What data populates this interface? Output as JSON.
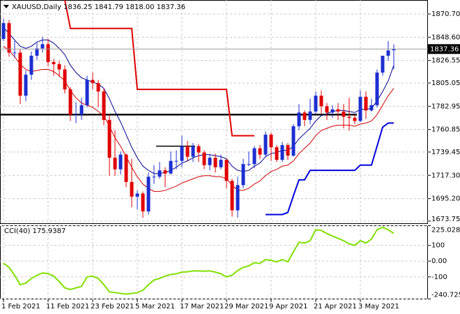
{
  "chart_data": [
    {
      "type": "candlestick",
      "title": "XAUUSD,Daily  1836.25 1841.79 1818.00 1837.36",
      "categories": [
        "1 Feb 2021",
        null,
        null,
        null,
        null,
        null,
        null,
        null,
        "11 Feb 2021",
        null,
        null,
        null,
        null,
        null,
        null,
        null,
        "23 Feb 2021",
        null,
        null,
        null,
        null,
        null,
        null,
        null,
        "5 Mar 2021",
        null,
        null,
        null,
        null,
        null,
        null,
        null,
        "17 Mar 2021",
        null,
        null,
        null,
        null,
        null,
        null,
        null,
        "29 Mar 2021",
        null,
        null,
        null,
        null,
        null,
        null,
        null,
        "9 Apr 2021",
        null,
        null,
        null,
        null,
        null,
        null,
        null,
        "21 Apr 2021",
        null,
        null,
        null,
        null,
        null,
        null,
        null,
        "3 May 2021",
        null,
        null,
        null,
        null,
        null,
        null
      ],
      "open": [
        1847,
        1862,
        1834,
        1834,
        1793,
        1813,
        1831,
        1838,
        1842,
        1825,
        1823,
        1818,
        1799,
        1775,
        1775,
        1784,
        1808,
        1805,
        1797,
        1770,
        1734,
        1723,
        1737,
        1711,
        1697,
        1700,
        1683,
        1716,
        1716,
        1722,
        1719,
        1731,
        1731,
        1745,
        1735,
        1745,
        1739,
        1727,
        1734,
        1725,
        1732,
        1712,
        1684,
        1708,
        1728,
        1728,
        1743,
        1737,
        1756,
        1744,
        1732,
        1746,
        1736,
        1764,
        1777,
        1770,
        1778,
        1793,
        1783,
        1777,
        1780,
        1778,
        1773,
        1772,
        1769,
        1792,
        1779,
        1784,
        1815,
        1831,
        1836.25
      ],
      "high": [
        1866,
        1865,
        1845,
        1837,
        1817,
        1835,
        1843,
        1849,
        1847,
        1828,
        1826,
        1822,
        1801,
        1787,
        1791,
        1812,
        1815,
        1808,
        1800,
        1775,
        1760,
        1740,
        1738,
        1733,
        1703,
        1702,
        1720,
        1727,
        1730,
        1725,
        1740,
        1741,
        1755,
        1750,
        1748,
        1747,
        1741,
        1737,
        1738,
        1737,
        1733,
        1714,
        1716,
        1733,
        1740,
        1745,
        1746,
        1759,
        1758,
        1746,
        1749,
        1748,
        1766,
        1785,
        1779,
        1790,
        1797,
        1798,
        1786,
        1784,
        1786,
        1785,
        1791,
        1775,
        1798,
        1797,
        1790,
        1818,
        1831,
        1845,
        1841.79
      ],
      "low": [
        1845,
        1830,
        1829,
        1785,
        1788,
        1808,
        1827,
        1834,
        1821,
        1812,
        1811,
        1795,
        1769,
        1767,
        1770,
        1782,
        1799,
        1782,
        1765,
        1717,
        1717,
        1718,
        1706,
        1687,
        1685,
        1677,
        1680,
        1709,
        1714,
        1706,
        1718,
        1723,
        1725,
        1731,
        1730,
        1730,
        1723,
        1722,
        1720,
        1723,
        1705,
        1678,
        1677,
        1705,
        1726,
        1724,
        1733,
        1735,
        1731,
        1730,
        1730,
        1732,
        1735,
        1760,
        1764,
        1766,
        1775,
        1776,
        1770,
        1772,
        1770,
        1762,
        1760,
        1766,
        1768,
        1771,
        1778,
        1782,
        1812,
        1826,
        1818
      ],
      "close": [
        1862,
        1834,
        1834,
        1793,
        1813,
        1831,
        1838,
        1842,
        1825,
        1823,
        1818,
        1799,
        1775,
        1775,
        1784,
        1808,
        1805,
        1797,
        1770,
        1734,
        1723,
        1737,
        1711,
        1697,
        1700,
        1683,
        1716,
        1716,
        1722,
        1719,
        1731,
        1731,
        1745,
        1735,
        1745,
        1739,
        1727,
        1734,
        1725,
        1732,
        1712,
        1684,
        1708,
        1728,
        1728,
        1743,
        1737,
        1756,
        1744,
        1732,
        1746,
        1736,
        1764,
        1777,
        1770,
        1778,
        1793,
        1783,
        1777,
        1780,
        1778,
        1773,
        1772,
        1769,
        1792,
        1779,
        1784,
        1815,
        1831,
        1836,
        1837.36
      ],
      "up_color": "#1c2fd0",
      "down_color": "#e00000",
      "series": [
        {
          "color": "#00008b",
          "width": 1,
          "values": [
            1858,
            1852,
            1846,
            1840,
            1838,
            1840,
            1844,
            1846,
            1846,
            1843,
            1838,
            1832,
            1822,
            1815,
            1810,
            1808,
            1806,
            1804,
            1800,
            1790,
            1778,
            1768,
            1756,
            1744,
            1734,
            1726,
            1722,
            1719,
            1719,
            1720,
            1722,
            1725,
            1729,
            1731,
            1734,
            1736,
            1737,
            1737,
            1736,
            1735,
            1733,
            1726,
            1722,
            1721,
            1722,
            1726,
            1729,
            1735,
            1738,
            1739,
            1741,
            1741,
            1745,
            1752,
            1757,
            1762,
            1769,
            1774,
            1776,
            1778,
            1779,
            1779,
            1778,
            1777,
            1780,
            1780,
            1781,
            1788,
            1797,
            1807,
            1822
          ]
        },
        {
          "color": "#d00000",
          "width": 1,
          "values": [
            1840,
            1836,
            1830,
            1823,
            1818,
            1816,
            1817,
            1818,
            1818,
            1816,
            1812,
            1807,
            1798,
            1791,
            1786,
            1784,
            1782,
            1778,
            1774,
            1764,
            1753,
            1745,
            1735,
            1725,
            1716,
            1709,
            1705,
            1702,
            1702,
            1703,
            1705,
            1707,
            1710,
            1712,
            1714,
            1716,
            1717,
            1717,
            1716,
            1716,
            1714,
            1708,
            1703,
            1703,
            1705,
            1709,
            1712,
            1717,
            1721,
            1723,
            1726,
            1727,
            1731,
            1738,
            1743,
            1748,
            1755,
            1760,
            1762,
            1764,
            1765,
            1765,
            1765,
            1764,
            1766,
            1767,
            1769,
            1775,
            1784,
            1793,
            1800
          ]
        },
        {
          "color": "#e00000",
          "width": 2,
          "values": [
            null,
            null,
            null,
            null,
            null,
            null,
            null,
            null,
            null,
            null,
            null,
            1884,
            1857,
            1857,
            1857,
            1857,
            1857,
            1857,
            1857,
            1857,
            1857,
            1857,
            1857,
            1857,
            1799,
            1799,
            1799,
            1799,
            1799,
            1799,
            1799,
            1799,
            1799,
            1799,
            1799,
            1799,
            1799,
            1799,
            1799,
            1799,
            1799,
            1755,
            1755,
            1755,
            1755,
            1755,
            null,
            null,
            null,
            null,
            null,
            null,
            null,
            null,
            null,
            null,
            null,
            null,
            null,
            null,
            null,
            null,
            null,
            null,
            null,
            null,
            null,
            null,
            null,
            null,
            null
          ]
        },
        {
          "color": "#0000dd",
          "width": 2,
          "values": [
            null,
            null,
            null,
            null,
            null,
            null,
            null,
            null,
            null,
            null,
            null,
            null,
            null,
            null,
            null,
            null,
            null,
            null,
            null,
            null,
            null,
            null,
            null,
            null,
            null,
            null,
            null,
            null,
            null,
            null,
            null,
            null,
            null,
            null,
            null,
            null,
            null,
            null,
            null,
            null,
            null,
            null,
            null,
            null,
            null,
            null,
            null,
            1680,
            1680,
            1680,
            1680,
            1682,
            1698,
            1713,
            1713,
            1722,
            1722,
            1722,
            1722,
            1722,
            1722,
            1722,
            1722,
            1722,
            1727,
            1727,
            1727,
            1745,
            1763,
            1767,
            1767
          ]
        }
      ],
      "levels": [
        1775,
        1745
      ],
      "ylim": [
        1671.7,
        1884
      ],
      "yticks": [
        {
          "value": 1870.7,
          "label": "1870.70"
        },
        {
          "value": 1848.6,
          "label": "1848.60"
        },
        1826.55,
        1805.05,
        1782.95,
        1760.85,
        1739.45,
        {
          "value": 1717.3,
          "label": "1717.30"
        },
        {
          "value": 1695.2,
          "label": "1695.20"
        },
        1673.75
      ],
      "grid": true
    },
    {
      "type": "line",
      "title": "CCI(40) 175.9387",
      "color": "#80e000",
      "values": [
        -13,
        -40,
        -90,
        -150,
        -140,
        -110,
        -90,
        -75,
        -80,
        -95,
        -130,
        -170,
        -180,
        -170,
        -160,
        -100,
        -95,
        -110,
        -150,
        -195,
        -200,
        -205,
        -210,
        -205,
        -200,
        -185,
        -150,
        -120,
        -110,
        -95,
        -85,
        -80,
        -70,
        -68,
        -62,
        -62,
        -64,
        -62,
        -70,
        -80,
        -100,
        -90,
        -60,
        -40,
        -30,
        -10,
        -15,
        10,
        5,
        -5,
        10,
        -5,
        60,
        120,
        115,
        130,
        200,
        195,
        175,
        160,
        145,
        130,
        110,
        100,
        130,
        115,
        140,
        200,
        215,
        200,
        175.9387
      ],
      "ylim": [
        -240.7252,
        225.0286
      ],
      "yticks": [
        225.0286,
        100,
        {
          "value": 0,
          "label": "0.00"
        },
        -100,
        -240.7252
      ],
      "grid": true
    }
  ]
}
